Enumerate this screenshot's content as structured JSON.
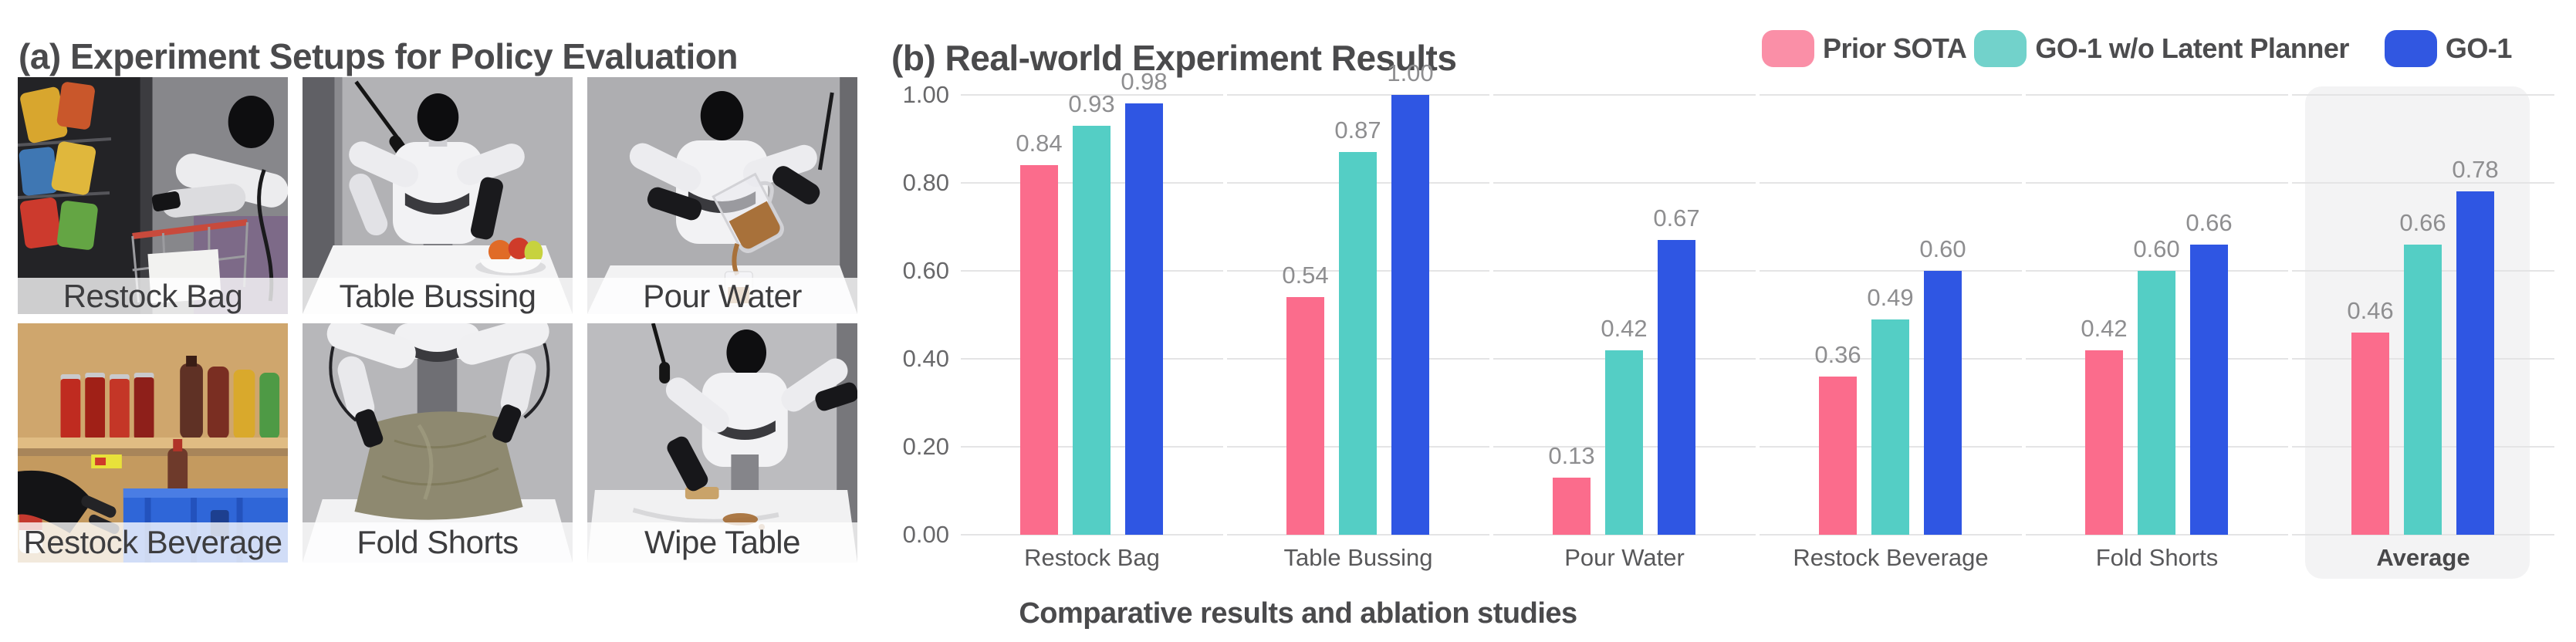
{
  "panel_a": {
    "title": "(a) Experiment Setups for Policy Evaluation",
    "tiles": [
      {
        "label": "Restock Bag"
      },
      {
        "label": "Table Bussing"
      },
      {
        "label": "Pour Water"
      },
      {
        "label": "Restock Beverage"
      },
      {
        "label": "Fold Shorts"
      },
      {
        "label": "Wipe Table"
      }
    ]
  },
  "panel_b": {
    "title": "(b) Real-world Experiment Results",
    "caption": "Comparative results and ablation studies",
    "legend": [
      {
        "label": "Prior SOTA",
        "swatch_color": "#fa8fa7"
      },
      {
        "label": "GO-1 w/o Latent Planner",
        "swatch_color": "#72d2cb"
      },
      {
        "label": "GO-1",
        "swatch_color": "#3157e1"
      }
    ]
  },
  "chart_data": {
    "type": "bar",
    "title": "(b) Real-world Experiment Results",
    "categories": [
      "Restock Bag",
      "Table Bussing",
      "Pour Water",
      "Restock Beverage",
      "Fold Shorts",
      "Average"
    ],
    "series": [
      {
        "name": "Prior SOTA",
        "color": "#fb6c8c",
        "values": [
          0.84,
          0.54,
          0.13,
          0.36,
          0.42,
          0.46
        ]
      },
      {
        "name": "GO-1 w/o Latent Planner",
        "color": "#54cec5",
        "values": [
          0.93,
          0.87,
          0.42,
          0.49,
          0.6,
          0.66
        ]
      },
      {
        "name": "GO-1",
        "color": "#2f56e3",
        "values": [
          0.98,
          1.0,
          0.67,
          0.6,
          0.66,
          0.78
        ]
      }
    ],
    "ylim": [
      0,
      1.0
    ],
    "yticks": [
      "1.00",
      "0.80",
      "0.60",
      "0.40",
      "0.20",
      "0.00"
    ],
    "grid": true,
    "value_labels": true,
    "legend_position": "top-right",
    "highlight_category": "Average",
    "gridline_color": "#e4e4e5",
    "highlight_bg_color": "#f3f3f4"
  }
}
